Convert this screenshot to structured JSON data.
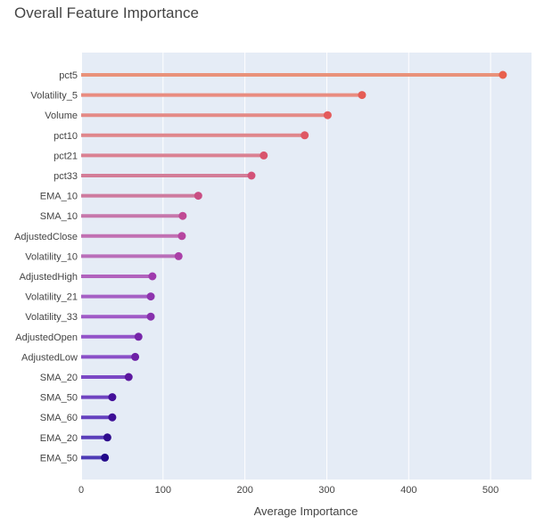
{
  "chart_data": {
    "type": "lollipop",
    "title": "Overall Feature Importance",
    "xlabel": "Average Importance",
    "ylabel": "",
    "xlim": [
      0,
      550
    ],
    "xticks": [
      0,
      100,
      200,
      300,
      400,
      500
    ],
    "grid": true,
    "legend": "none",
    "plot_background": "#e5ecf6",
    "categories": [
      "pct5",
      "Volatility_5",
      "Volume",
      "pct10",
      "pct21",
      "pct33",
      "EMA_10",
      "SMA_10",
      "AdjustedClose",
      "Volatility_10",
      "AdjustedHigh",
      "Volatility_21",
      "Volatility_33",
      "AdjustedOpen",
      "AdjustedLow",
      "SMA_20",
      "SMA_50",
      "SMA_60",
      "EMA_20",
      "EMA_50"
    ],
    "values": [
      515,
      343,
      301,
      273,
      223,
      208,
      143,
      124,
      123,
      119,
      87,
      85,
      85,
      70,
      66,
      58,
      38,
      38,
      32,
      29
    ],
    "line_colors": [
      "#e9927a",
      "#e98c80",
      "#e48a86",
      "#df868c",
      "#da8192",
      "#d37d98",
      "#ce7a9e",
      "#c677ab",
      "#c170b2",
      "#b96eb9",
      "#b163bd",
      "#a560c4",
      "#a05ac6",
      "#9353c8",
      "#8a4fc7",
      "#7b48c5",
      "#6f43c0",
      "#6541bf",
      "#5a3eba",
      "#4d3bb6"
    ],
    "marker_colors": [
      "#e8604d",
      "#e55d56",
      "#e45b5b",
      "#df5965",
      "#d9556d",
      "#d35278",
      "#c94e83",
      "#c04a94",
      "#b646a0",
      "#aa40a8",
      "#9f3aad",
      "#8e34ae",
      "#8731ad",
      "#7625a9",
      "#6e21a6",
      "#5c179f",
      "#45109a",
      "#3e0f96",
      "#2f0c8e",
      "#22098a"
    ]
  }
}
